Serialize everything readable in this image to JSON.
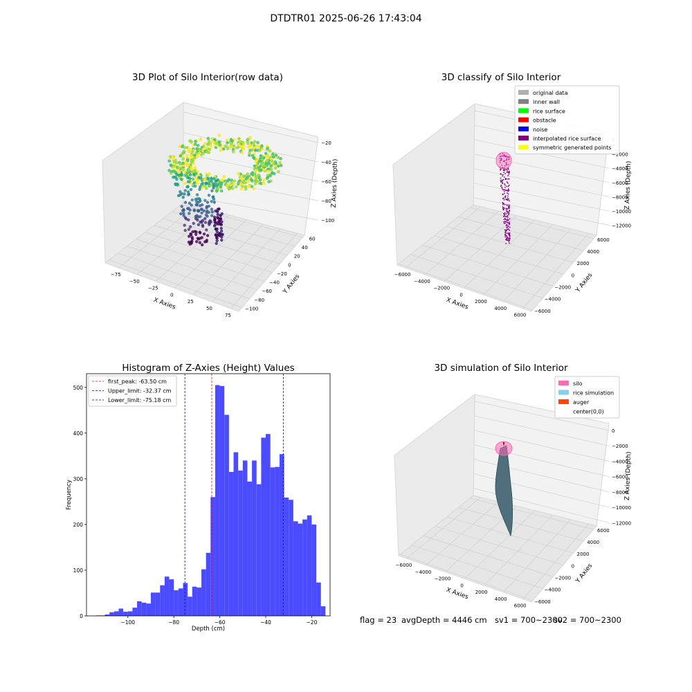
{
  "suptitle": "DTDTR01 2025-06-26 17:43:04",
  "status_line": {
    "flag": "flag = 23",
    "avg_depth": "avgDepth = 4446 cm",
    "sv1": "sv1 = 700~2300",
    "sv2": "sv2 = 700~2300"
  },
  "colors": {
    "hist_bar": "#4b4bff",
    "first_peak": "#ff0000",
    "limit_line": "#0000ff",
    "pane": "#f2f2f2",
    "silo": "#ff69b4",
    "rice_sim": "#87ceeb",
    "auger": "#ff4500",
    "interpolated": "#800080"
  },
  "chart_data": [
    {
      "type": "scatter",
      "subtype": "3d",
      "title": "3D Plot of Silo Interior(row data)",
      "xlabel": "X Axies",
      "ylabel": "Y Axies",
      "zlabel": "Z Axies (Depth)",
      "x_ticks": [
        "−75",
        "−50",
        "−25",
        "0",
        "25",
        "50",
        "75"
      ],
      "y_ticks": [
        "−100",
        "−80",
        "−60",
        "−40",
        "−20",
        "0",
        "20",
        "40",
        "60"
      ],
      "z_ticks": [
        "−100",
        "−80",
        "−60",
        "−40",
        "−20"
      ],
      "xlim": [
        -90,
        80
      ],
      "ylim": [
        -100,
        65
      ],
      "zlim": [
        -115,
        -15
      ],
      "colormap": "viridis (by depth)"
    },
    {
      "type": "scatter",
      "subtype": "3d",
      "title": "3D classify of Silo Interior",
      "xlabel": "X Axies",
      "ylabel": "Y Axies",
      "zlabel": "Z Axies (Depth)",
      "x_ticks": [
        "−6000",
        "−4000",
        "−2000",
        "0",
        "2000",
        "4000",
        "6000"
      ],
      "y_ticks": [
        "−6000",
        "−4000",
        "−2000",
        "0",
        "2000",
        "4000",
        "6000"
      ],
      "z_ticks": [
        "0",
        "−2000",
        "−4000",
        "−6000",
        "−8000",
        "−10000",
        "−12000"
      ],
      "legend": [
        {
          "label": "original data",
          "color": "#b0b0b0"
        },
        {
          "label": "inner wall",
          "color": "#808080"
        },
        {
          "label": "rice surface",
          "color": "#00ff00"
        },
        {
          "label": "obstacle",
          "color": "#ff0000"
        },
        {
          "label": "noise",
          "color": "#0000ff"
        },
        {
          "label": "interpolated rice surface",
          "color": "#800080"
        },
        {
          "label": "symmetric generated points",
          "color": "#ffff00"
        }
      ],
      "legend_placement": "top-right"
    },
    {
      "type": "bar",
      "subtype": "histogram",
      "title": "Histogram of Z-Axies (Height) Values",
      "xlabel": "Depth (cm)",
      "ylabel": "Frequency",
      "x_ticks": [
        -100,
        -80,
        -60,
        -40,
        -20
      ],
      "y_ticks": [
        0,
        100,
        200,
        300,
        400,
        500
      ],
      "xlim": [
        -118,
        -12
      ],
      "ylim": [
        0,
        530
      ],
      "bin_start": -114,
      "bin_width": 2,
      "values": [
        1,
        1,
        3,
        8,
        10,
        16,
        9,
        10,
        18,
        32,
        29,
        27,
        51,
        51,
        67,
        86,
        80,
        56,
        60,
        72,
        42,
        64,
        62,
        102,
        138,
        260,
        505,
        503,
        440,
        315,
        358,
        318,
        340,
        294,
        340,
        288,
        390,
        398,
        325,
        326,
        354,
        259,
        254,
        207,
        202,
        211,
        220,
        200,
        73,
        21
      ],
      "reference_lines": [
        {
          "label": "first_peak: -63.50 cm",
          "x": -63.5,
          "color": "#ff0000"
        },
        {
          "label": "Upper_limit: -32.37 cm",
          "x": -32.37,
          "color": "#0000ff"
        },
        {
          "label": "Lower_limit: -75.18 cm",
          "x": -75.18,
          "color": "#0000ff"
        }
      ],
      "legend_placement": "top-left"
    },
    {
      "type": "scatter",
      "subtype": "3d-surface",
      "title": "3D simulation of Silo Interior",
      "xlabel": "X Axies",
      "ylabel": "Y Axies",
      "zlabel": "Z Axies (Depth)",
      "x_ticks": [
        "−6000",
        "−4000",
        "−2000",
        "0",
        "2000",
        "4000",
        "6000"
      ],
      "y_ticks": [
        "−6000",
        "−4000",
        "−2000",
        "0",
        "2000",
        "4000",
        "6000"
      ],
      "z_ticks": [
        "0",
        "−2000",
        "−4000",
        "−6000",
        "−8000",
        "−10000",
        "−12000"
      ],
      "legend": [
        {
          "label": "silo",
          "color": "#ff69b4"
        },
        {
          "label": "rice simulation",
          "color": "#87ceeb"
        },
        {
          "label": "auger",
          "color": "#ff4500"
        },
        {
          "label": "center(0,0)",
          "color": "#ffffff"
        }
      ],
      "legend_placement": "top-right"
    }
  ]
}
